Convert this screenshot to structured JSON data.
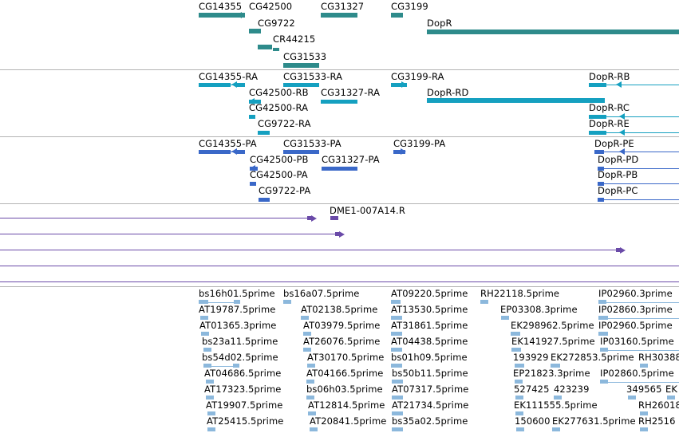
{
  "colors": {
    "gene": "#2e8b8b",
    "mrna": "#15a0c0",
    "cds": "#3a68c8",
    "est": "#6a4aa8",
    "ests": "#8cb8dc",
    "separator": "#b4b4b4"
  },
  "tracks": {
    "genes": [
      {
        "label": "CG14355"
      },
      {
        "label": "CG42500"
      },
      {
        "label": "CG9722"
      },
      {
        "label": "CR44215"
      },
      {
        "label": "CG31533"
      },
      {
        "label": "CG31327"
      },
      {
        "label": "CG3199"
      },
      {
        "label": "DopR"
      }
    ],
    "transcripts": [
      {
        "label": "CG14355-RA"
      },
      {
        "label": "CG31533-RA"
      },
      {
        "label": "CG3199-RA"
      },
      {
        "label": "DopR-RB"
      },
      {
        "label": "CG42500-RB"
      },
      {
        "label": "CG31327-RA"
      },
      {
        "label": "DopR-RD"
      },
      {
        "label": "CG42500-RA"
      },
      {
        "label": "DopR-RC"
      },
      {
        "label": "CG9722-RA"
      },
      {
        "label": "DopR-RE"
      }
    ],
    "proteins": [
      {
        "label": "CG14355-PA"
      },
      {
        "label": "CG31533-PA"
      },
      {
        "label": "CG3199-PA"
      },
      {
        "label": "DopR-PE"
      },
      {
        "label": "CG42500-PB"
      },
      {
        "label": "CG31327-PA"
      },
      {
        "label": "DopR-PD"
      },
      {
        "label": "CG42500-PA"
      },
      {
        "label": "DopR-PB"
      },
      {
        "label": "CG9722-PA"
      },
      {
        "label": "DopR-PC"
      }
    ],
    "clones": [
      {
        "label": "DME1-007A14.R"
      }
    ],
    "ests": [
      {
        "label": "bs16h01.5prime"
      },
      {
        "label": "bs16a07.5prime"
      },
      {
        "label": "AT09220.5prime"
      },
      {
        "label": "RH22118.5prime"
      },
      {
        "label": "IP02960.3prime"
      },
      {
        "label": "AT19787.5prime"
      },
      {
        "label": "AT02138.5prime"
      },
      {
        "label": "AT13530.5prime"
      },
      {
        "label": "EP03308.3prime"
      },
      {
        "label": "IP02860.3prime"
      },
      {
        "label": "AT01365.3prime"
      },
      {
        "label": "AT03979.5prime"
      },
      {
        "label": "AT31861.5prime"
      },
      {
        "label": "EK298962.5prime"
      },
      {
        "label": "IP02960.5prime"
      },
      {
        "label": "bs23a11.5prime"
      },
      {
        "label": "AT26076.5prime"
      },
      {
        "label": "AT04438.5prime"
      },
      {
        "label": "EK141927.5prime"
      },
      {
        "label": "IP03160.5prime"
      },
      {
        "label": "bs54d02.5prime"
      },
      {
        "label": "AT30170.5prime"
      },
      {
        "label": "bs01h09.5prime"
      },
      {
        "label": "193929"
      },
      {
        "label": "EK272853.5prime"
      },
      {
        "label": "RH30388"
      },
      {
        "label": "AT04686.5prime"
      },
      {
        "label": "AT04166.5prime"
      },
      {
        "label": "bs50b11.5prime"
      },
      {
        "label": "EP21823.3prime"
      },
      {
        "label": "IP02860.5prime"
      },
      {
        "label": "AT17323.5prime"
      },
      {
        "label": "bs06h03.5prime"
      },
      {
        "label": "AT07317.5prime"
      },
      {
        "label": "527425"
      },
      {
        "label": "423239"
      },
      {
        "label": "349565"
      },
      {
        "label": "EK"
      },
      {
        "label": "AT19907.5prime"
      },
      {
        "label": "AT12814.5prime"
      },
      {
        "label": "AT21734.5prime"
      },
      {
        "label": "EK111555.5prime"
      },
      {
        "label": "RH26018"
      },
      {
        "label": "AT25415.5prime"
      },
      {
        "label": "AT20841.5prime"
      },
      {
        "label": "bs35a02.5prime"
      },
      {
        "label": "150600"
      },
      {
        "label": "EK277631.5prime"
      },
      {
        "label": "RH2516"
      }
    ]
  }
}
